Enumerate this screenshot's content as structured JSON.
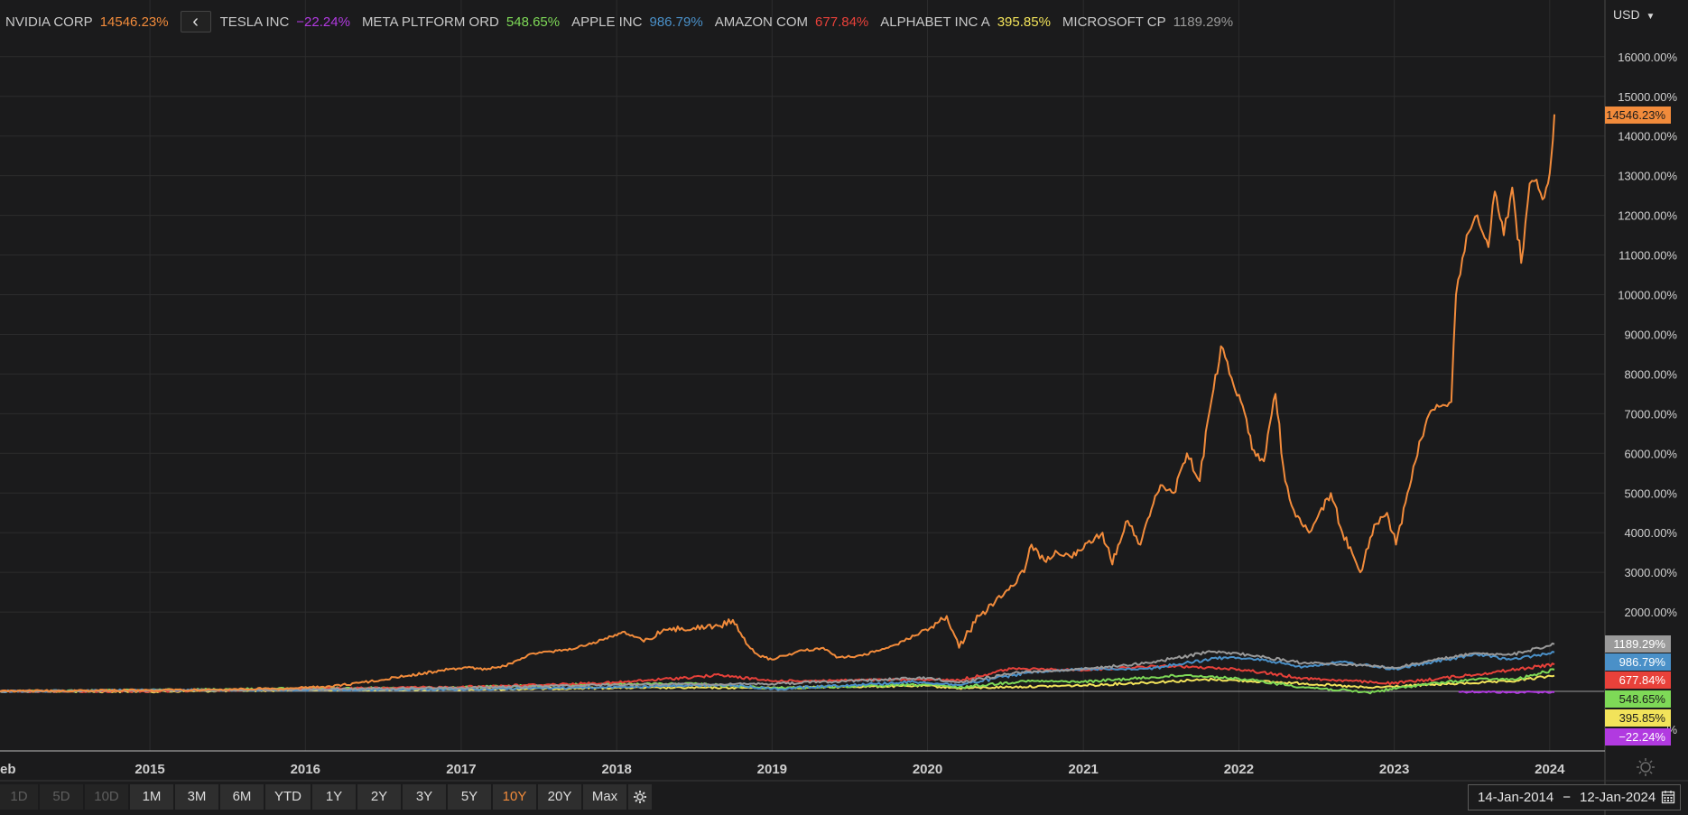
{
  "currency": "USD",
  "legend": [
    {
      "name": "NVIDIA CORP",
      "value": "14546.23%",
      "color": "#f28b3b"
    },
    {
      "name": "TESLA INC",
      "value": "−22.24%",
      "color": "#b13ae0"
    },
    {
      "name": "META PLTFORM ORD",
      "value": "548.65%",
      "color": "#7ed957"
    },
    {
      "name": "APPLE INC",
      "value": "986.79%",
      "color": "#4a90c8"
    },
    {
      "name": "AMAZON COM",
      "value": "677.84%",
      "color": "#e8413a"
    },
    {
      "name": "ALPHABET INC A",
      "value": "395.85%",
      "color": "#f2e35a"
    },
    {
      "name": "MICROSOFT CP",
      "value": "1189.29%",
      "color": "#9a9a9a"
    }
  ],
  "badges": [
    {
      "value": "14546.23%",
      "bg": "#f28b3b",
      "fg": "#1b1b1c"
    },
    {
      "value": "1189.29%",
      "bg": "#9a9a9a",
      "fg": "#ffffff"
    },
    {
      "value": "986.79%",
      "bg": "#4a90c8",
      "fg": "#ffffff"
    },
    {
      "value": "677.84%",
      "bg": "#e8413a",
      "fg": "#ffffff"
    },
    {
      "value": "548.65%",
      "bg": "#7ed957",
      "fg": "#1b1b1c"
    },
    {
      "value": "395.85%",
      "bg": "#f2e35a",
      "fg": "#1b1b1c"
    },
    {
      "value": "−22.24%",
      "bg": "#b13ae0",
      "fg": "#ffffff"
    }
  ],
  "range_buttons": [
    {
      "label": "1D",
      "state": "disabled"
    },
    {
      "label": "5D",
      "state": "disabled"
    },
    {
      "label": "10D",
      "state": "disabled"
    },
    {
      "label": "1M",
      "state": "normal"
    },
    {
      "label": "3M",
      "state": "normal"
    },
    {
      "label": "6M",
      "state": "normal"
    },
    {
      "label": "YTD",
      "state": "normal"
    },
    {
      "label": "1Y",
      "state": "normal"
    },
    {
      "label": "2Y",
      "state": "normal"
    },
    {
      "label": "3Y",
      "state": "normal"
    },
    {
      "label": "5Y",
      "state": "normal"
    },
    {
      "label": "10Y",
      "state": "active"
    },
    {
      "label": "20Y",
      "state": "normal"
    },
    {
      "label": "Max",
      "state": "normal"
    }
  ],
  "date_range": {
    "from": "14-Jan-2014",
    "sep": "−",
    "to": "12-Jan-2024"
  },
  "chart_data": {
    "type": "line",
    "x_tick_labels": [
      "eb",
      "2015",
      "2016",
      "2017",
      "2018",
      "2019",
      "2020",
      "2021",
      "2022",
      "2023",
      "2024"
    ],
    "y_tick_labels": [
      "16000.00%",
      "15000.00%",
      "14000.00%",
      "13000.00%",
      "12000.00%",
      "11000.00%",
      "10000.00%",
      "9000.00%",
      "8000.00%",
      "7000.00%",
      "6000.00%",
      "5000.00%",
      "4000.00%",
      "3000.00%",
      "2000.00%"
    ],
    "y_partial_tick_label": "%",
    "ylim": [
      -1500,
      16500
    ],
    "xlim": [
      "2014-01-14",
      "2024-01-12"
    ],
    "grid": true,
    "series": [
      {
        "name": "NVIDIA CORP",
        "color": "#f28b3b",
        "points": [
          [
            "2014-01-14",
            0
          ],
          [
            "2014-06-01",
            15
          ],
          [
            "2015-01-01",
            30
          ],
          [
            "2015-06-01",
            40
          ],
          [
            "2015-12-01",
            80
          ],
          [
            "2016-03-01",
            120
          ],
          [
            "2016-06-01",
            250
          ],
          [
            "2016-09-01",
            400
          ],
          [
            "2016-12-01",
            550
          ],
          [
            "2017-01-15",
            600
          ],
          [
            "2017-03-01",
            550
          ],
          [
            "2017-05-01",
            700
          ],
          [
            "2017-06-15",
            950
          ],
          [
            "2017-08-01",
            1000
          ],
          [
            "2017-10-01",
            1100
          ],
          [
            "2017-12-01",
            1300
          ],
          [
            "2018-01-15",
            1500
          ],
          [
            "2018-03-01",
            1300
          ],
          [
            "2018-05-01",
            1550
          ],
          [
            "2018-07-01",
            1600
          ],
          [
            "2018-09-01",
            1650
          ],
          [
            "2018-10-01",
            1800
          ],
          [
            "2018-11-01",
            1200
          ],
          [
            "2018-12-01",
            900
          ],
          [
            "2019-01-01",
            800
          ],
          [
            "2019-03-01",
            1000
          ],
          [
            "2019-05-01",
            1100
          ],
          [
            "2019-06-01",
            850
          ],
          [
            "2019-08-01",
            900
          ],
          [
            "2019-10-01",
            1100
          ],
          [
            "2019-12-01",
            1400
          ],
          [
            "2020-01-15",
            1600
          ],
          [
            "2020-02-15",
            1900
          ],
          [
            "2020-03-15",
            1100
          ],
          [
            "2020-05-01",
            1900
          ],
          [
            "2020-07-01",
            2500
          ],
          [
            "2020-08-15",
            3000
          ],
          [
            "2020-09-01",
            3700
          ],
          [
            "2020-10-01",
            3300
          ],
          [
            "2020-11-01",
            3500
          ],
          [
            "2020-12-01",
            3400
          ],
          [
            "2021-01-01",
            3600
          ],
          [
            "2021-02-15",
            4000
          ],
          [
            "2021-03-10",
            3200
          ],
          [
            "2021-04-15",
            4300
          ],
          [
            "2021-05-15",
            3700
          ],
          [
            "2021-06-10",
            4600
          ],
          [
            "2021-07-01",
            5200
          ],
          [
            "2021-08-01",
            5000
          ],
          [
            "2021-09-01",
            6000
          ],
          [
            "2021-10-01",
            5300
          ],
          [
            "2021-10-25",
            7100
          ],
          [
            "2021-11-20",
            8700
          ],
          [
            "2021-12-15",
            7900
          ],
          [
            "2022-01-10",
            7200
          ],
          [
            "2022-02-01",
            6100
          ],
          [
            "2022-03-01",
            5800
          ],
          [
            "2022-03-28",
            7500
          ],
          [
            "2022-04-20",
            5300
          ],
          [
            "2022-05-15",
            4400
          ],
          [
            "2022-06-15",
            4000
          ],
          [
            "2022-07-01",
            4300
          ],
          [
            "2022-08-05",
            5000
          ],
          [
            "2022-09-01",
            4000
          ],
          [
            "2022-10-13",
            3000
          ],
          [
            "2022-11-15",
            4200
          ],
          [
            "2022-12-15",
            4500
          ],
          [
            "2023-01-05",
            3700
          ],
          [
            "2023-02-01",
            5000
          ],
          [
            "2023-03-01",
            6300
          ],
          [
            "2023-04-01",
            7100
          ],
          [
            "2023-05-15",
            7300
          ],
          [
            "2023-05-26",
            10000
          ],
          [
            "2023-06-20",
            11500
          ],
          [
            "2023-07-15",
            12000
          ],
          [
            "2023-08-10",
            11200
          ],
          [
            "2023-08-25",
            12600
          ],
          [
            "2023-09-15",
            11500
          ],
          [
            "2023-10-05",
            12700
          ],
          [
            "2023-10-26",
            10800
          ],
          [
            "2023-11-15",
            12800
          ],
          [
            "2023-12-01",
            12900
          ],
          [
            "2023-12-15",
            12400
          ],
          [
            "2023-12-28",
            12800
          ],
          [
            "2024-01-05",
            13500
          ],
          [
            "2024-01-12",
            14546
          ]
        ]
      },
      {
        "name": "MICROSOFT CP",
        "color": "#9a9a9a",
        "points": [
          [
            "2014-01-14",
            0
          ],
          [
            "2015-01-01",
            20
          ],
          [
            "2016-01-01",
            50
          ],
          [
            "2017-01-01",
            90
          ],
          [
            "2018-01-01",
            170
          ],
          [
            "2019-01-01",
            190
          ],
          [
            "2020-01-01",
            340
          ],
          [
            "2020-03-15",
            220
          ],
          [
            "2020-08-01",
            480
          ],
          [
            "2021-01-01",
            560
          ],
          [
            "2021-06-01",
            720
          ],
          [
            "2021-11-01",
            1000
          ],
          [
            "2022-01-01",
            950
          ],
          [
            "2022-06-01",
            720
          ],
          [
            "2022-11-01",
            650
          ],
          [
            "2023-01-01",
            590
          ],
          [
            "2023-04-01",
            780
          ],
          [
            "2023-07-01",
            950
          ],
          [
            "2023-10-01",
            920
          ],
          [
            "2024-01-12",
            1189
          ]
        ]
      },
      {
        "name": "APPLE INC",
        "color": "#4a90c8",
        "points": [
          [
            "2014-01-14",
            0
          ],
          [
            "2015-01-01",
            35
          ],
          [
            "2016-01-01",
            30
          ],
          [
            "2017-01-01",
            55
          ],
          [
            "2018-01-01",
            110
          ],
          [
            "2018-10-01",
            160
          ],
          [
            "2019-01-01",
            60
          ],
          [
            "2019-12-01",
            240
          ],
          [
            "2020-03-15",
            160
          ],
          [
            "2020-08-15",
            460
          ],
          [
            "2021-01-01",
            560
          ],
          [
            "2021-06-01",
            570
          ],
          [
            "2021-12-01",
            860
          ],
          [
            "2022-03-01",
            790
          ],
          [
            "2022-06-01",
            620
          ],
          [
            "2022-09-01",
            740
          ],
          [
            "2022-12-31",
            560
          ],
          [
            "2023-04-01",
            740
          ],
          [
            "2023-07-15",
            930
          ],
          [
            "2023-10-01",
            800
          ],
          [
            "2024-01-12",
            987
          ]
        ]
      },
      {
        "name": "AMAZON COM",
        "color": "#e8413a",
        "points": [
          [
            "2014-01-14",
            0
          ],
          [
            "2015-01-01",
            0
          ],
          [
            "2016-01-01",
            60
          ],
          [
            "2017-01-01",
            110
          ],
          [
            "2018-01-01",
            220
          ],
          [
            "2018-09-01",
            410
          ],
          [
            "2018-12-31",
            260
          ],
          [
            "2019-12-31",
            300
          ],
          [
            "2020-03-15",
            280
          ],
          [
            "2020-07-15",
            570
          ],
          [
            "2021-01-01",
            540
          ],
          [
            "2021-07-15",
            640
          ],
          [
            "2022-01-01",
            560
          ],
          [
            "2022-06-01",
            330
          ],
          [
            "2022-12-31",
            200
          ],
          [
            "2023-07-15",
            430
          ],
          [
            "2024-01-12",
            678
          ]
        ]
      },
      {
        "name": "META PLTFORM ORD",
        "color": "#7ed957",
        "points": [
          [
            "2014-01-14",
            0
          ],
          [
            "2015-01-01",
            30
          ],
          [
            "2016-01-01",
            75
          ],
          [
            "2017-01-01",
            100
          ],
          [
            "2017-12-01",
            190
          ],
          [
            "2018-07-01",
            190
          ],
          [
            "2018-12-31",
            80
          ],
          [
            "2019-12-31",
            170
          ],
          [
            "2020-03-15",
            100
          ],
          [
            "2020-08-15",
            260
          ],
          [
            "2021-01-01",
            240
          ],
          [
            "2021-09-01",
            410
          ],
          [
            "2022-01-01",
            320
          ],
          [
            "2022-06-01",
            110
          ],
          [
            "2022-11-01",
            -30
          ],
          [
            "2023-03-01",
            160
          ],
          [
            "2023-07-15",
            310
          ],
          [
            "2023-10-15",
            300
          ],
          [
            "2024-01-12",
            549
          ]
        ]
      },
      {
        "name": "ALPHABET INC A",
        "color": "#f2e35a",
        "points": [
          [
            "2014-01-14",
            0
          ],
          [
            "2015-01-01",
            -5
          ],
          [
            "2016-01-01",
            35
          ],
          [
            "2017-01-01",
            45
          ],
          [
            "2018-01-01",
            90
          ],
          [
            "2019-01-01",
            90
          ],
          [
            "2020-01-01",
            140
          ],
          [
            "2020-03-15",
            80
          ],
          [
            "2021-01-01",
            150
          ],
          [
            "2021-11-01",
            300
          ],
          [
            "2022-06-01",
            200
          ],
          [
            "2022-11-01",
            90
          ],
          [
            "2023-04-01",
            170
          ],
          [
            "2023-10-01",
            250
          ],
          [
            "2024-01-12",
            396
          ]
        ]
      },
      {
        "name": "TESLA INC",
        "color": "#b13ae0",
        "points": [
          [
            "2023-06-01",
            -10
          ],
          [
            "2023-08-01",
            -12
          ],
          [
            "2023-10-01",
            -25
          ],
          [
            "2023-12-01",
            -15
          ],
          [
            "2024-01-12",
            -22
          ]
        ]
      }
    ]
  }
}
